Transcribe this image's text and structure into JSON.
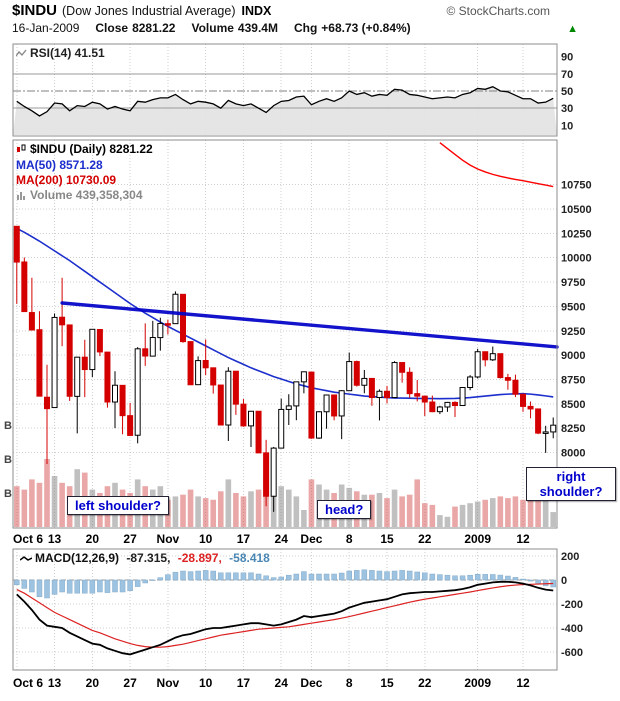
{
  "header": {
    "symbol": "$INDU",
    "name": "(Dow Jones Industrial Average)",
    "exchange": "INDX",
    "copyright": "© StockCharts.com",
    "date": "16-Jan-2009",
    "close_label": "Close",
    "close_value": "8281.22",
    "volume_label": "Volume",
    "volume_value": "439.4M",
    "chg_label": "Chg",
    "chg_value": "+68.73 (+0.84%)",
    "chg_arrow": "▲"
  },
  "rsi_panel": {
    "legend": "RSI(14) 41.51"
  },
  "main_panel": {
    "legend_symbol": "$INDU (Daily) 8281.22",
    "legend_ma50": "MA(50) 8571.28",
    "legend_ma200": "MA(200) 10730.09",
    "legend_volume": "Volume 439,358,304"
  },
  "macd_panel": {
    "legend": "MACD(12,26,9)",
    "value_macd": "-87.315,",
    "value_signal": "-28.897,",
    "value_hist": "-58.418"
  },
  "colors": {
    "up_green": "#008800",
    "candle_down": "#d40000",
    "volume_down": "rgba(208,60,60,0.45)",
    "volume_up": "rgba(130,130,130,0.5)",
    "ma50": "#1c2ecc",
    "ma200": "#ff0000",
    "trendline": "#0000c8",
    "macd_hist": "#9dc3e0",
    "macd_hist_border": "#82abcc",
    "macd_signal": "#dd2222",
    "annotation_blue": "#0000cc"
  },
  "chart_data": [
    {
      "type": "line",
      "title": "RSI(14)",
      "last_value": 41.51,
      "ylim": [
        0,
        100
      ],
      "yticks": [
        90,
        70,
        50,
        30,
        10
      ],
      "overbought": 70,
      "oversold": 30,
      "midline": 50,
      "values": [
        38,
        32,
        27,
        21,
        26,
        36,
        35,
        27,
        33,
        32,
        37,
        35,
        29,
        32,
        29,
        27,
        38,
        37,
        40,
        42,
        42,
        46,
        40,
        35,
        38,
        37,
        35,
        30,
        39,
        35,
        33,
        35,
        30,
        25,
        33,
        38,
        39,
        43,
        44,
        34,
        38,
        41,
        38,
        42,
        50,
        46,
        48,
        44,
        46,
        45,
        52,
        51,
        46,
        45,
        43,
        41,
        42,
        43,
        42,
        46,
        48,
        53,
        52,
        55,
        50,
        49,
        45,
        41,
        41,
        36,
        37,
        41.51
      ]
    },
    {
      "type": "candlestick",
      "title": "$INDU (Daily)",
      "last_close": 8281.22,
      "ylim": [
        7230,
        11210
      ],
      "yticks": [
        10750,
        10500,
        10250,
        10000,
        9750,
        9500,
        9250,
        9000,
        8750,
        8500,
        8250,
        8000
      ],
      "x_tick_labels": [
        "Oct 6",
        "13",
        "20",
        "27",
        "Nov",
        "10",
        "17",
        "24",
        "Dec",
        "8",
        "15",
        "22",
        "2009",
        "12"
      ],
      "x_tick_indices": [
        0,
        5,
        10,
        15,
        20,
        25,
        30,
        35,
        39,
        44,
        49,
        54,
        61,
        67
      ],
      "dates": [
        "Oct 6",
        "Oct 7",
        "Oct 8",
        "Oct 9",
        "Oct 10",
        "Oct 13",
        "Oct 14",
        "Oct 15",
        "Oct 16",
        "Oct 17",
        "Oct 20",
        "Oct 21",
        "Oct 22",
        "Oct 23",
        "Oct 24",
        "Oct 27",
        "Oct 28",
        "Oct 29",
        "Oct 30",
        "Oct 31",
        "Nov 3",
        "Nov 4",
        "Nov 5",
        "Nov 6",
        "Nov 7",
        "Nov 10",
        "Nov 11",
        "Nov 12",
        "Nov 13",
        "Nov 14",
        "Nov 17",
        "Nov 18",
        "Nov 19",
        "Nov 20",
        "Nov 21",
        "Nov 24",
        "Nov 25",
        "Nov 26",
        "Nov 28",
        "Dec 1",
        "Dec 2",
        "Dec 3",
        "Dec 4",
        "Dec 5",
        "Dec 8",
        "Dec 9",
        "Dec 10",
        "Dec 11",
        "Dec 12",
        "Dec 15",
        "Dec 16",
        "Dec 17",
        "Dec 18",
        "Dec 19",
        "Dec 22",
        "Dec 23",
        "Dec 24",
        "Dec 26",
        "Dec 29",
        "Dec 30",
        "Dec 31",
        "Jan 2",
        "Jan 5",
        "Jan 6",
        "Jan 7",
        "Jan 8",
        "Jan 9",
        "Jan 12",
        "Jan 13",
        "Jan 14",
        "Jan 15",
        "Jan 16"
      ],
      "ohlc": [
        [
          10322,
          10322,
          9526,
          9955
        ],
        [
          9956,
          10002,
          9447,
          9447
        ],
        [
          9437,
          9794,
          9258,
          9258
        ],
        [
          9261,
          9451,
          8579,
          8579
        ],
        [
          8568,
          8901,
          7883,
          8451
        ],
        [
          8462,
          9428,
          8462,
          9387
        ],
        [
          9389,
          9794,
          9092,
          9311
        ],
        [
          9310,
          9310,
          8530,
          8578
        ],
        [
          8577,
          8983,
          8197,
          8979
        ],
        [
          8979,
          9158,
          8569,
          8852
        ],
        [
          8852,
          9268,
          8775,
          9265
        ],
        [
          9263,
          9265,
          8990,
          9033
        ],
        [
          9031,
          9031,
          8461,
          8519
        ],
        [
          8519,
          8835,
          8251,
          8691
        ],
        [
          8690,
          8690,
          8188,
          8379
        ],
        [
          8379,
          8510,
          8175,
          8176
        ],
        [
          8178,
          9082,
          8095,
          9065
        ],
        [
          9065,
          9326,
          8890,
          8991
        ],
        [
          8990,
          9352,
          8990,
          9181
        ],
        [
          9180,
          9384,
          9046,
          9325
        ],
        [
          9323,
          9365,
          9212,
          9320
        ],
        [
          9323,
          9654,
          9323,
          9625
        ],
        [
          9624,
          9624,
          9127,
          9139
        ],
        [
          9139,
          9139,
          8696,
          8696
        ],
        [
          8697,
          8988,
          8697,
          8944
        ],
        [
          8945,
          9161,
          8794,
          8870
        ],
        [
          8870,
          8870,
          8605,
          8694
        ],
        [
          8693,
          8693,
          8282,
          8283
        ],
        [
          8283,
          8876,
          8119,
          8835
        ],
        [
          8835,
          8835,
          8387,
          8497
        ],
        [
          8497,
          8550,
          8265,
          8274
        ],
        [
          8274,
          8424,
          8057,
          8424
        ],
        [
          8424,
          8424,
          7997,
          7997
        ],
        [
          7997,
          8131,
          7449,
          7552
        ],
        [
          7552,
          8058,
          7392,
          8046
        ],
        [
          8046,
          8554,
          8046,
          8443
        ],
        [
          8443,
          8599,
          8283,
          8479
        ],
        [
          8479,
          8729,
          8332,
          8726
        ],
        [
          8726,
          8831,
          8608,
          8829
        ],
        [
          8826,
          8826,
          8141,
          8149
        ],
        [
          8149,
          8425,
          8141,
          8419
        ],
        [
          8419,
          8596,
          8245,
          8591
        ],
        [
          8591,
          8591,
          8331,
          8376
        ],
        [
          8376,
          8640,
          8138,
          8635
        ],
        [
          8635,
          9027,
          8635,
          8934
        ],
        [
          8934,
          8944,
          8678,
          8691
        ],
        [
          8691,
          8848,
          8609,
          8761
        ],
        [
          8761,
          8761,
          8480,
          8565
        ],
        [
          8565,
          8649,
          8330,
          8629
        ],
        [
          8629,
          8684,
          8505,
          8565
        ],
        [
          8565,
          8938,
          8565,
          8924
        ],
        [
          8924,
          8924,
          8718,
          8824
        ],
        [
          8824,
          8874,
          8563,
          8605
        ],
        [
          8605,
          8745,
          8525,
          8579
        ],
        [
          8579,
          8585,
          8375,
          8519
        ],
        [
          8519,
          8585,
          8415,
          8420
        ],
        [
          8420,
          8480,
          8395,
          8468
        ],
        [
          8468,
          8520,
          8418,
          8515
        ],
        [
          8515,
          8527,
          8365,
          8483
        ],
        [
          8483,
          8668,
          8483,
          8668
        ],
        [
          8668,
          8795,
          8640,
          8776
        ],
        [
          8776,
          9065,
          8760,
          9035
        ],
        [
          9035,
          9035,
          8885,
          8952
        ],
        [
          8952,
          9088,
          8940,
          9015
        ],
        [
          9015,
          9015,
          8760,
          8770
        ],
        [
          8770,
          8808,
          8645,
          8742
        ],
        [
          8742,
          8800,
          8570,
          8599
        ],
        [
          8599,
          8599,
          8418,
          8474
        ],
        [
          8474,
          8524,
          8352,
          8448
        ],
        [
          8448,
          8448,
          8189,
          8200
        ],
        [
          8200,
          8275,
          7997,
          8212
        ],
        [
          8212,
          8360,
          8147,
          8281.22
        ]
      ],
      "volume_millions": [
        1200,
        1100,
        1400,
        1300,
        2000,
        1500,
        1300,
        1200,
        1700,
        1600,
        1100,
        1000,
        1200,
        1300,
        1100,
        1000,
        1400,
        1200,
        1100,
        1200,
        800,
        900,
        950,
        1100,
        900,
        850,
        800,
        1050,
        1400,
        1000,
        900,
        1050,
        1100,
        1500,
        1800,
        1200,
        1100,
        900,
        500,
        1400,
        1250,
        1100,
        1000,
        1250,
        1150,
        1050,
        950,
        950,
        1000,
        850,
        1100,
        900,
        950,
        1400,
        700,
        650,
        350,
        300,
        600,
        650,
        700,
        750,
        800,
        850,
        900,
        850,
        900,
        800,
        850,
        950,
        900,
        439.4
      ],
      "volume_axis": [
        {
          "label": "B",
          "millions": 1000
        },
        {
          "label": "B",
          "millions": 2000
        },
        {
          "label": "B",
          "millions": 3000
        }
      ],
      "ma50": [
        10300,
        10260,
        10215,
        10170,
        10120,
        10070,
        10020,
        9970,
        9915,
        9860,
        9805,
        9750,
        9695,
        9640,
        9585,
        9530,
        9480,
        9430,
        9385,
        9340,
        9295,
        9255,
        9215,
        9175,
        9135,
        9095,
        9055,
        9015,
        8975,
        8940,
        8905,
        8870,
        8840,
        8810,
        8780,
        8755,
        8730,
        8705,
        8685,
        8665,
        8650,
        8635,
        8620,
        8610,
        8600,
        8590,
        8580,
        8575,
        8570,
        8565,
        8560,
        8560,
        8558,
        8556,
        8555,
        8554,
        8553,
        8554,
        8556,
        8560,
        8565,
        8572,
        8580,
        8588,
        8595,
        8600,
        8603,
        8604,
        8600,
        8592,
        8582,
        8571.28
      ],
      "ma200": [
        null,
        null,
        null,
        null,
        null,
        null,
        null,
        null,
        null,
        null,
        null,
        null,
        null,
        null,
        null,
        null,
        null,
        null,
        null,
        null,
        null,
        null,
        null,
        null,
        null,
        null,
        null,
        null,
        null,
        null,
        null,
        null,
        null,
        null,
        null,
        null,
        null,
        null,
        null,
        null,
        null,
        null,
        null,
        null,
        null,
        null,
        null,
        null,
        null,
        null,
        null,
        null,
        null,
        null,
        null,
        null,
        11180,
        11120,
        11060,
        11000,
        10950,
        10910,
        10880,
        10855,
        10835,
        10818,
        10803,
        10790,
        10775,
        10760,
        10745,
        10730.09
      ],
      "trendline": {
        "x1_index": 6,
        "price1": 9535,
        "x2_index": 71.5,
        "price2": 9084
      },
      "annotations": [
        {
          "label": "left shoulder?"
        },
        {
          "label": "head?"
        },
        {
          "label": "right shoulder?"
        }
      ]
    },
    {
      "type": "line+bar",
      "title": "MACD(12,26,9)",
      "last_macd": -87.315,
      "last_signal": -28.897,
      "last_histogram": -58.418,
      "yticks": [
        200,
        0,
        -200,
        -400,
        -600
      ],
      "macd": [
        -120,
        -180,
        -250,
        -330,
        -380,
        -390,
        -400,
        -440,
        -470,
        -500,
        -530,
        -540,
        -570,
        -590,
        -610,
        -620,
        -600,
        -580,
        -560,
        -540,
        -510,
        -480,
        -460,
        -450,
        -430,
        -410,
        -400,
        -400,
        -390,
        -380,
        -370,
        -360,
        -360,
        -370,
        -380,
        -370,
        -350,
        -330,
        -300,
        -310,
        -300,
        -290,
        -280,
        -260,
        -230,
        -210,
        -190,
        -180,
        -170,
        -160,
        -140,
        -120,
        -110,
        -105,
        -100,
        -100,
        -95,
        -90,
        -85,
        -75,
        -60,
        -40,
        -30,
        -20,
        -15,
        -15,
        -20,
        -30,
        -45,
        -65,
        -80,
        -87.315
      ],
      "signal": [
        -80,
        -110,
        -150,
        -190,
        -230,
        -270,
        -300,
        -330,
        -360,
        -390,
        -420,
        -440,
        -465,
        -490,
        -510,
        -530,
        -545,
        -555,
        -560,
        -560,
        -555,
        -545,
        -535,
        -520,
        -505,
        -490,
        -475,
        -460,
        -450,
        -440,
        -430,
        -420,
        -410,
        -405,
        -400,
        -395,
        -390,
        -380,
        -370,
        -360,
        -350,
        -340,
        -330,
        -318,
        -305,
        -290,
        -275,
        -260,
        -245,
        -230,
        -215,
        -200,
        -185,
        -172,
        -160,
        -150,
        -140,
        -130,
        -120,
        -110,
        -100,
        -88,
        -77,
        -66,
        -56,
        -48,
        -42,
        -38,
        -36,
        -34,
        -31,
        -28.897
      ]
    }
  ]
}
